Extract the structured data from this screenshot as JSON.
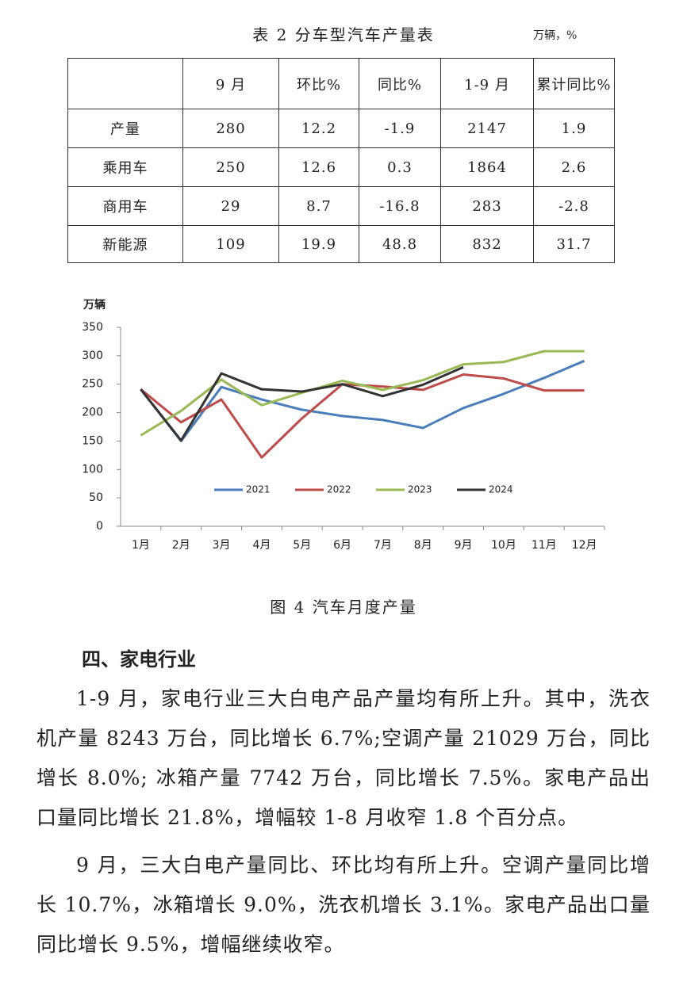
{
  "table": {
    "title": "表 2 分车型汽车产量表",
    "unit": "万辆，%",
    "header": [
      "9 月",
      "环比%",
      "同比%",
      "1-9 月",
      "累计同比%"
    ],
    "rows": [
      [
        "产量",
        "280",
        "12.2",
        "-1.9",
        "2147",
        "1.9"
      ],
      [
        "乘用车",
        "250",
        "12.6",
        "0.3",
        "1864",
        "2.6"
      ],
      [
        "商用车",
        "29",
        "8.7",
        "-16.8",
        "283",
        "-2.8"
      ],
      [
        "新能源",
        "109",
        "19.9",
        "48.8",
        "832",
        "31.7"
      ]
    ]
  },
  "chart_data": {
    "type": "line",
    "y_label": "万辆",
    "categories": [
      "1月",
      "2月",
      "3月",
      "4月",
      "5月",
      "6月",
      "7月",
      "8月",
      "9月",
      "10月",
      "11月",
      "12月"
    ],
    "series": [
      {
        "name": "2021",
        "color": "#4a7ebb",
        "values": [
          241,
          150,
          245,
          223,
          205,
          194,
          187,
          173,
          208,
          233,
          261,
          291
        ]
      },
      {
        "name": "2022",
        "color": "#be4b48",
        "values": [
          241,
          183,
          223,
          121,
          190,
          250,
          246,
          240,
          267,
          260,
          239,
          239
        ]
      },
      {
        "name": "2023",
        "color": "#98b954",
        "values": [
          160,
          203,
          258,
          213,
          235,
          256,
          240,
          257,
          285,
          289,
          308,
          308
        ]
      },
      {
        "name": "2024",
        "color": "#333333",
        "values": [
          241,
          151,
          269,
          241,
          237,
          250,
          229,
          249,
          280,
          null,
          null,
          null
        ]
      }
    ],
    "ylim": [
      0,
      350
    ],
    "yticks": [
      0,
      50,
      100,
      150,
      200,
      250,
      300,
      350
    ],
    "grid": false,
    "legend": "bottom"
  },
  "caption": "图 4 汽车月度产量",
  "section": {
    "heading": "四、家电行业",
    "paragraphs": [
      "1-9 月，家电行业三大白电产品产量均有所上升。其中，洗衣机产量 8243 万台，同比增长 6.7%;空调产量 21029 万台，同比增长 8.0%; 冰箱产量 7742 万台，同比增长 7.5%。家电产品出口量同比增长 21.8%，增幅较 1-8 月收窄 1.8 个百分点。",
      "9 月，三大白电产量同比、环比均有所上升。空调产量同比增长 10.7%，冰箱增长 9.0%，洗衣机增长 3.1%。家电产品出口量同比增长 9.5%，增幅继续收窄。"
    ]
  }
}
